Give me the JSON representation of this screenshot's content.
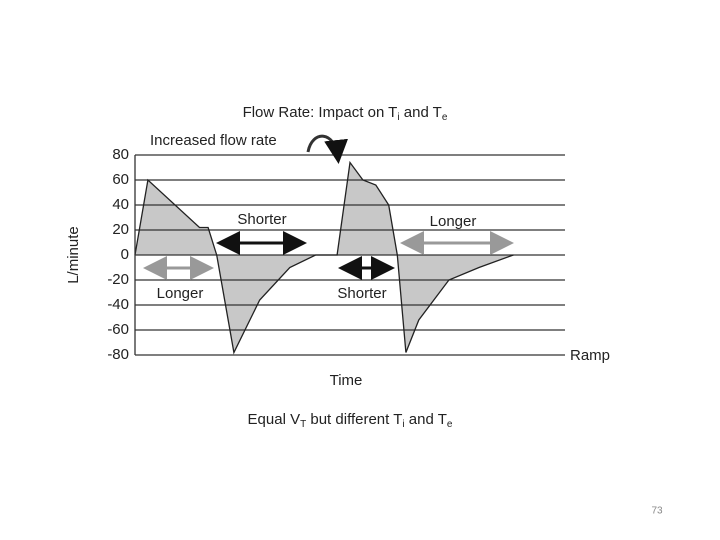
{
  "chart_data": {
    "type": "line",
    "title": [
      "Flow Rate: Impact on T",
      "i",
      " and T",
      "e"
    ],
    "caption": [
      "Equal V",
      "T",
      " but different T",
      "i",
      " and T",
      "e"
    ],
    "xlabel": "Time",
    "ylabel": "L/minute",
    "annotations": [
      "Increased flow rate",
      "Shorter",
      "Longer",
      "Shorter",
      "Longer",
      "Ramp"
    ],
    "x": [
      0,
      3,
      15,
      17,
      19,
      23,
      29,
      36,
      42,
      47,
      50,
      53,
      56,
      59,
      61,
      63,
      66,
      73,
      80,
      88
    ],
    "values": [
      0,
      60,
      22,
      22,
      0,
      -78,
      -36,
      -10,
      0,
      0,
      74,
      60,
      56,
      40,
      0,
      -78,
      -52,
      -20,
      -10,
      0
    ],
    "xlim": [
      0,
      100
    ],
    "ylim": [
      -80,
      80
    ],
    "yticks": [
      -80,
      -60,
      -40,
      -20,
      0,
      20,
      40,
      60,
      80
    ],
    "grid": true,
    "color": "#222",
    "fill": "#c8c8c8"
  },
  "page_number": "73"
}
